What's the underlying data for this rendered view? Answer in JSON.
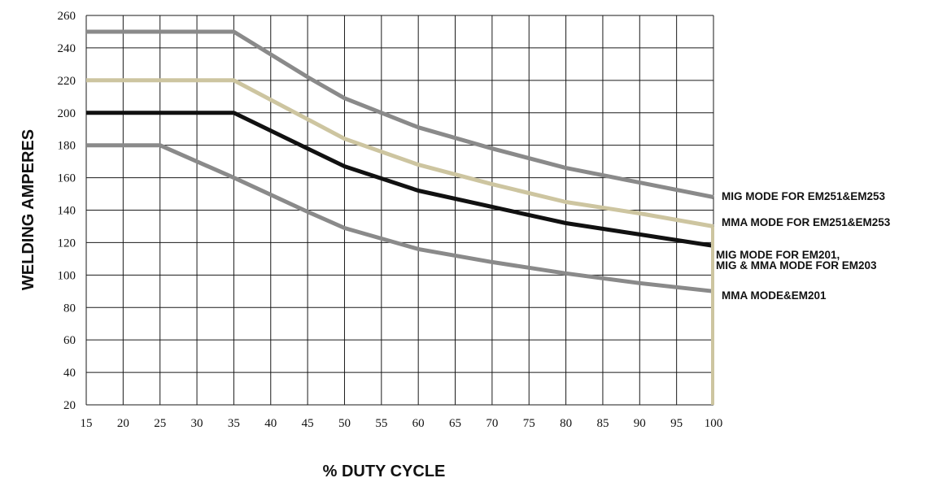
{
  "chart_data": {
    "type": "line",
    "title": "",
    "xlabel": "% DUTY CYCLE",
    "ylabel": "WELDING AMPERES",
    "xlim": [
      15,
      100
    ],
    "ylim": [
      20,
      260
    ],
    "xticks": [
      15,
      20,
      25,
      30,
      35,
      40,
      45,
      50,
      55,
      60,
      65,
      70,
      75,
      80,
      85,
      90,
      95,
      100
    ],
    "yticks": [
      20,
      40,
      60,
      80,
      100,
      120,
      140,
      160,
      180,
      200,
      220,
      240,
      260
    ],
    "grid": true,
    "series": [
      {
        "name": "MIG MODE FOR EM251&EM253",
        "color": "#8a8a8a",
        "x": [
          15,
          35,
          45,
          50,
          60,
          70,
          80,
          90,
          100
        ],
        "y": [
          250,
          250,
          222,
          209,
          191,
          178,
          166,
          157,
          148
        ]
      },
      {
        "name": "MMA MODE FOR EM251&EM253",
        "color": "#cdc5a0",
        "x": [
          15,
          35,
          45,
          50,
          60,
          70,
          80,
          90,
          100
        ],
        "y": [
          220,
          220,
          196,
          184,
          168,
          156,
          145,
          138,
          130
        ]
      },
      {
        "name_lines": [
          "MIG MODE FOR EM201,",
          "MIG & MMA MODE FOR EM203"
        ],
        "color": "#111111",
        "x": [
          15,
          35,
          45,
          50,
          60,
          70,
          80,
          90,
          100
        ],
        "y": [
          200,
          200,
          178,
          167,
          152,
          142,
          132,
          125,
          118
        ]
      },
      {
        "name": "MMA MODE&EM201",
        "color": "#8a8a8a",
        "x": [
          15,
          25,
          35,
          45,
          50,
          60,
          70,
          80,
          90,
          100
        ],
        "y": [
          180,
          180,
          160,
          139,
          129,
          116,
          108,
          101,
          95,
          90
        ]
      }
    ]
  }
}
